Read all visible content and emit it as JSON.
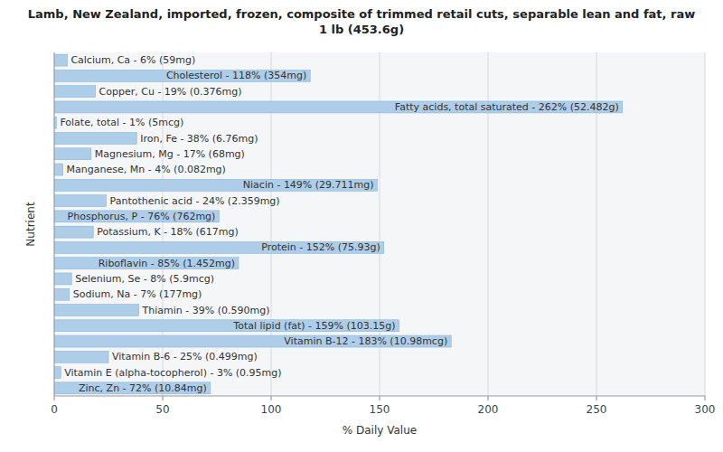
{
  "chart_data": {
    "type": "bar",
    "orientation": "horizontal",
    "title": "Lamb, New Zealand, imported, frozen, composite of trimmed retail cuts, separable lean and fat, raw\n1 lb (453.6g)",
    "xlabel": "% Daily Value",
    "ylabel": "Nutrient",
    "categories": [
      "Calcium, Ca - 6% (59mg)",
      "Cholesterol - 118% (354mg)",
      "Copper, Cu - 19% (0.376mg)",
      "Fatty acids, total saturated - 262% (52.482g)",
      "Folate, total - 1% (5mcg)",
      "Iron, Fe - 38% (6.76mg)",
      "Magnesium, Mg - 17% (68mg)",
      "Manganese, Mn - 4% (0.082mg)",
      "Niacin - 149% (29.711mg)",
      "Pantothenic acid - 24% (2.359mg)",
      "Phosphorus, P - 76% (762mg)",
      "Potassium, K - 18% (617mg)",
      "Protein - 152% (75.93g)",
      "Riboflavin - 85% (1.452mg)",
      "Selenium, Se - 8% (5.9mcg)",
      "Sodium, Na - 7% (177mg)",
      "Thiamin - 39% (0.590mg)",
      "Total lipid (fat) - 159% (103.15g)",
      "Vitamin B-12 - 183% (10.98mcg)",
      "Vitamin B-6 - 25% (0.499mg)",
      "Vitamin E (alpha-tocopherol) - 3% (0.95mg)",
      "Zinc, Zn - 72% (10.84mg)"
    ],
    "values": [
      6,
      118,
      19,
      262,
      1,
      38,
      17,
      4,
      149,
      24,
      76,
      18,
      152,
      85,
      8,
      7,
      39,
      159,
      183,
      25,
      3,
      72
    ],
    "color": "#aecde8",
    "xlim": [
      0,
      300
    ],
    "xticks": [
      0,
      50,
      100,
      150,
      200,
      250,
      300
    ],
    "grid": true,
    "tick_labels": "x"
  }
}
